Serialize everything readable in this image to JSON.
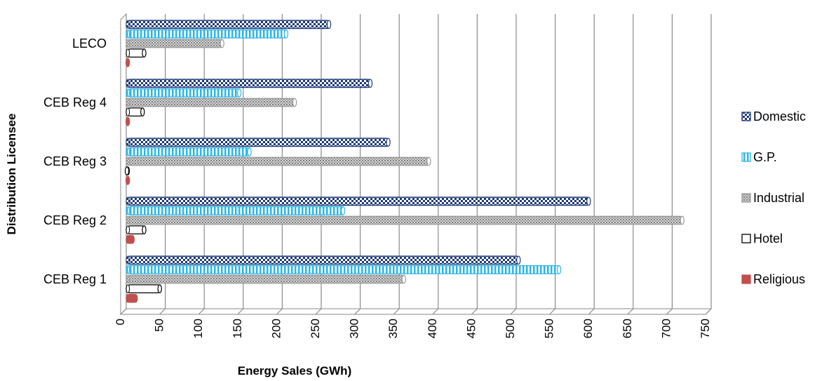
{
  "chart_data": {
    "type": "bar",
    "orientation": "horizontal",
    "title": "",
    "xlabel": "Energy Sales (GWh)",
    "ylabel": "Distribution Licensee",
    "xlim": [
      0,
      750
    ],
    "x_ticks": [
      0,
      50,
      100,
      150,
      200,
      250,
      300,
      350,
      400,
      450,
      500,
      550,
      600,
      650,
      700,
      750
    ],
    "grid": "vertical",
    "legend_position": "right",
    "categories": [
      "CEB Reg 1",
      "CEB Reg 2",
      "CEB Reg 3",
      "CEB Reg 4",
      "LECO"
    ],
    "series": [
      {
        "name": "Domestic",
        "color": "#1f3a78",
        "pattern": "checker",
        "values": [
          505,
          595,
          338,
          315,
          262
        ]
      },
      {
        "name": "G.P.",
        "color": "#29b6e8",
        "pattern": "vertical-stripes",
        "values": [
          557,
          280,
          160,
          147,
          207
        ]
      },
      {
        "name": "Industrial",
        "color": "#9a9a9a",
        "pattern": "dots",
        "values": [
          358,
          715,
          390,
          218,
          125
        ]
      },
      {
        "name": "Hotel",
        "color": "#000000",
        "pattern": "outline",
        "values": [
          45,
          25,
          3,
          23,
          25
        ]
      },
      {
        "name": "Religious",
        "color": "#c0504d",
        "pattern": "solid",
        "values": [
          14,
          10,
          4,
          4,
          4
        ]
      }
    ]
  }
}
